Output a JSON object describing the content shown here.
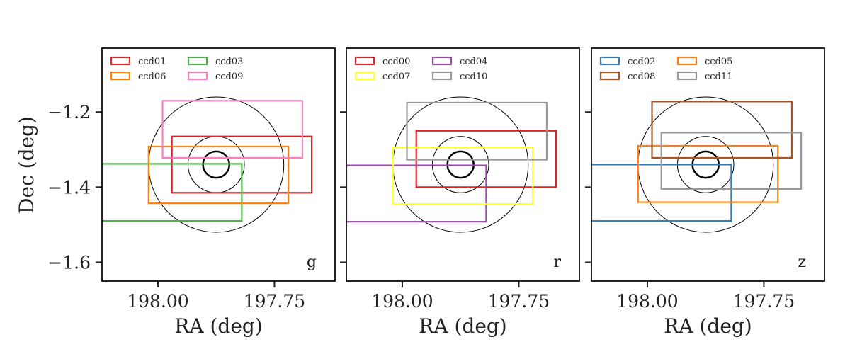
{
  "chart_data": {
    "type": "footprint",
    "ylabel": "Dec (deg)",
    "xlabel": "RA (deg)",
    "xlim": [
      198.12,
      197.62
    ],
    "ylim": [
      -1.65,
      -1.03
    ],
    "x_ticks": [
      198.0,
      197.75
    ],
    "x_tick_labels": [
      "198.00",
      "197.75"
    ],
    "y_ticks": [
      -1.2,
      -1.4,
      -1.6
    ],
    "y_tick_labels": [
      "−1.2",
      "−1.4",
      "−1.6"
    ],
    "center": {
      "ra": 197.875,
      "dec": -1.34
    },
    "circles": [
      {
        "radius_deg": 0.035,
        "stroke_width": 2.5
      },
      {
        "radius_deg": 0.075,
        "stroke_width": 1
      },
      {
        "radius_deg": 0.18,
        "stroke_width": 1
      }
    ],
    "panels": [
      {
        "band": "g",
        "legend": {
          "position": "upper-left",
          "columns": 2
        },
        "ccds": [
          {
            "name": "ccd01",
            "color": "#d62728",
            "ra_min": 197.67,
            "ra_max": 197.97,
            "dec_min": -1.415,
            "dec_max": -1.265
          },
          {
            "name": "ccd03",
            "color": "#4daf4a",
            "ra_min": 197.82,
            "ra_max": 198.12,
            "dec_min": -1.49,
            "dec_max": -1.338
          },
          {
            "name": "ccd06",
            "color": "#ff7f0e",
            "ra_min": 197.72,
            "ra_max": 198.02,
            "dec_min": -1.443,
            "dec_max": -1.292
          },
          {
            "name": "ccd09",
            "color": "#f781bf",
            "ra_min": 197.69,
            "ra_max": 197.99,
            "dec_min": -1.322,
            "dec_max": -1.17
          }
        ]
      },
      {
        "band": "r",
        "legend": {
          "position": "upper-left",
          "columns": 2
        },
        "ccds": [
          {
            "name": "ccd00",
            "color": "#d62728",
            "ra_min": 197.67,
            "ra_max": 197.97,
            "dec_min": -1.4,
            "dec_max": -1.25
          },
          {
            "name": "ccd04",
            "color": "#984ea3",
            "ra_min": 197.82,
            "ra_max": 198.12,
            "dec_min": -1.492,
            "dec_max": -1.342
          },
          {
            "name": "ccd07",
            "color": "#ffff33",
            "ra_min": 197.72,
            "ra_max": 198.02,
            "dec_min": -1.445,
            "dec_max": -1.295
          },
          {
            "name": "ccd10",
            "color": "#999999",
            "ra_min": 197.69,
            "ra_max": 197.99,
            "dec_min": -1.327,
            "dec_max": -1.175
          }
        ]
      },
      {
        "band": "z",
        "legend": {
          "position": "upper-left",
          "columns": 2
        },
        "ccds": [
          {
            "name": "ccd02",
            "color": "#377eb8",
            "ra_min": 197.82,
            "ra_max": 198.12,
            "dec_min": -1.49,
            "dec_max": -1.34
          },
          {
            "name": "ccd05",
            "color": "#ff7f0e",
            "ra_min": 197.72,
            "ra_max": 198.02,
            "dec_min": -1.44,
            "dec_max": -1.29
          },
          {
            "name": "ccd08",
            "color": "#a65628",
            "ra_min": 197.69,
            "ra_max": 197.99,
            "dec_min": -1.322,
            "dec_max": -1.172
          },
          {
            "name": "ccd11",
            "color": "#999999",
            "ra_min": 197.67,
            "ra_max": 197.97,
            "dec_min": -1.405,
            "dec_max": -1.255
          }
        ]
      }
    ]
  }
}
